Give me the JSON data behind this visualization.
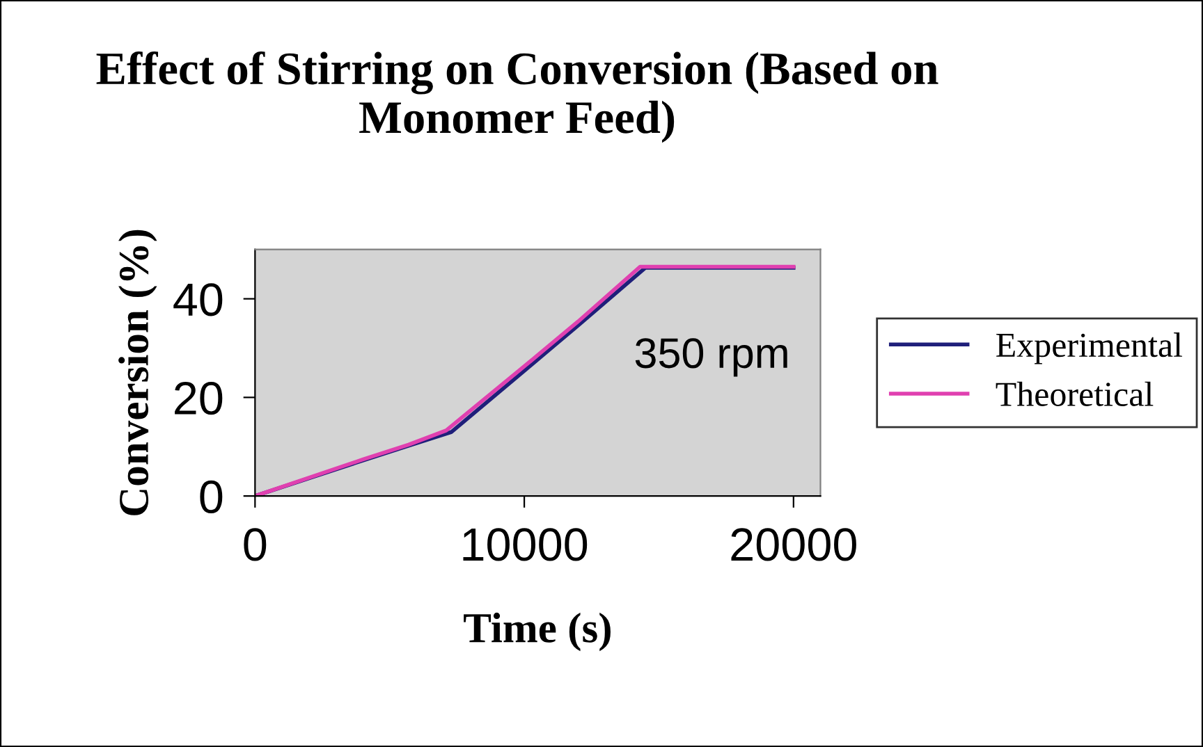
{
  "chart_data": {
    "type": "line",
    "title": "Effect of Stirring on Conversion (Based on Monomer Feed)",
    "xlabel": "Time (s)",
    "ylabel": "Conversion (%)",
    "xlim": [
      0,
      21000
    ],
    "xticks": [
      0,
      10000,
      20000
    ],
    "ylim": [
      0,
      50
    ],
    "yticks": [
      0,
      20,
      40
    ],
    "grid": false,
    "legend": "right",
    "marker": "none",
    "line_style": "solid",
    "annotations": [
      "350 rpm"
    ],
    "series": [
      {
        "name": "Experimental",
        "color": "#1f1f7a",
        "x": [
          0,
          2000,
          4000,
          5700,
          7300,
          10000,
          12000,
          14500,
          20000
        ],
        "values": [
          0,
          3.6,
          7.2,
          10.2,
          13.0,
          25.4,
          34.6,
          46.3,
          46.3
        ]
      },
      {
        "name": "Theoretical",
        "color": "#e040b0",
        "x": [
          0,
          2000,
          4000,
          5700,
          7100,
          10000,
          12000,
          14300,
          20000
        ],
        "values": [
          0,
          3.7,
          7.4,
          10.4,
          13.3,
          26.3,
          35.4,
          46.5,
          46.5
        ]
      }
    ]
  }
}
